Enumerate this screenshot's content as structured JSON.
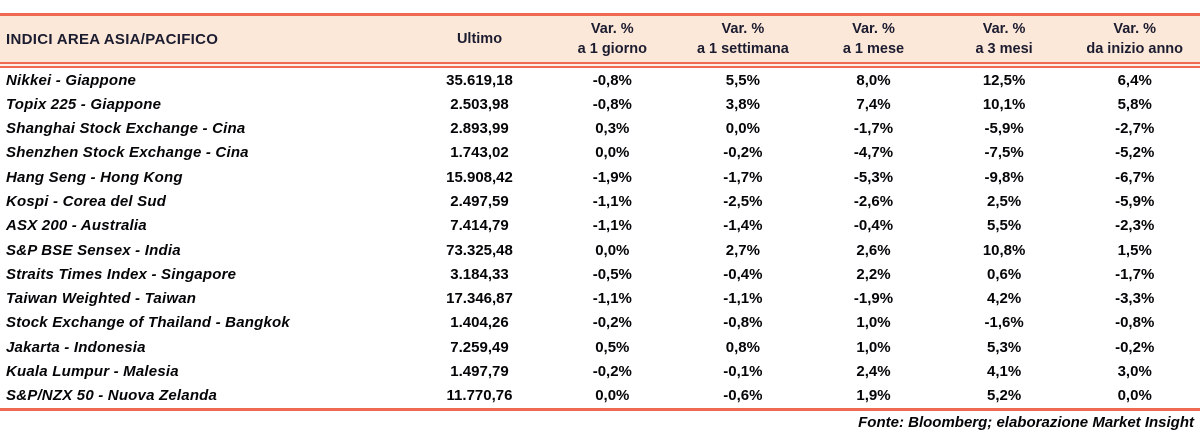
{
  "table": {
    "title": "INDICI AREA ASIA/PACIFICO",
    "col_ultimo": "Ultimo",
    "var_label": "Var. %",
    "var_periods": [
      "a 1 giorno",
      "a 1 settimana",
      "a 1 mese",
      "a 3 mesi",
      "da inizio anno"
    ],
    "rows": [
      {
        "name": "Nikkei - Giappone",
        "ultimo": "35.619,18",
        "d1": "-0,8%",
        "w1": "5,5%",
        "m1": "8,0%",
        "m3": "12,5%",
        "ytd": "6,4%"
      },
      {
        "name": "Topix 225 - Giappone",
        "ultimo": "2.503,98",
        "d1": "-0,8%",
        "w1": "3,8%",
        "m1": "7,4%",
        "m3": "10,1%",
        "ytd": "5,8%"
      },
      {
        "name": "Shanghai Stock Exchange - Cina",
        "ultimo": "2.893,99",
        "d1": "0,3%",
        "w1": "0,0%",
        "m1": "-1,7%",
        "m3": "-5,9%",
        "ytd": "-2,7%"
      },
      {
        "name": "Shenzhen Stock Exchange - Cina",
        "ultimo": "1.743,02",
        "d1": "0,0%",
        "w1": "-0,2%",
        "m1": "-4,7%",
        "m3": "-7,5%",
        "ytd": "-5,2%"
      },
      {
        "name": "Hang Seng - Hong Kong",
        "ultimo": "15.908,42",
        "d1": "-1,9%",
        "w1": "-1,7%",
        "m1": "-5,3%",
        "m3": "-9,8%",
        "ytd": "-6,7%"
      },
      {
        "name": "Kospi - Corea del Sud",
        "ultimo": "2.497,59",
        "d1": "-1,1%",
        "w1": "-2,5%",
        "m1": "-2,6%",
        "m3": "2,5%",
        "ytd": "-5,9%"
      },
      {
        "name": "ASX 200 - Australia",
        "ultimo": "7.414,79",
        "d1": "-1,1%",
        "w1": "-1,4%",
        "m1": "-0,4%",
        "m3": "5,5%",
        "ytd": "-2,3%"
      },
      {
        "name": "S&P BSE Sensex - India",
        "ultimo": "73.325,48",
        "d1": "0,0%",
        "w1": "2,7%",
        "m1": "2,6%",
        "m3": "10,8%",
        "ytd": "1,5%"
      },
      {
        "name": "Straits Times Index - Singapore",
        "ultimo": "3.184,33",
        "d1": "-0,5%",
        "w1": "-0,4%",
        "m1": "2,2%",
        "m3": "0,6%",
        "ytd": "-1,7%"
      },
      {
        "name": "Taiwan Weighted - Taiwan",
        "ultimo": "17.346,87",
        "d1": "-1,1%",
        "w1": "-1,1%",
        "m1": "-1,9%",
        "m3": "4,2%",
        "ytd": "-3,3%"
      },
      {
        "name": "Stock Exchange of Thailand - Bangkok",
        "ultimo": "1.404,26",
        "d1": "-0,2%",
        "w1": "-0,8%",
        "m1": "1,0%",
        "m3": "-1,6%",
        "ytd": "-0,8%"
      },
      {
        "name": "Jakarta - Indonesia",
        "ultimo": "7.259,49",
        "d1": "0,5%",
        "w1": "0,8%",
        "m1": "1,0%",
        "m3": "5,3%",
        "ytd": "-0,2%"
      },
      {
        "name": "Kuala Lumpur - Malesia",
        "ultimo": "1.497,79",
        "d1": "-0,2%",
        "w1": "-0,1%",
        "m1": "2,4%",
        "m3": "4,1%",
        "ytd": "3,0%"
      },
      {
        "name": "S&P/NZX 50 - Nuova Zelanda",
        "ultimo": "11.770,76",
        "d1": "0,0%",
        "w1": "-0,6%",
        "m1": "1,9%",
        "m3": "5,2%",
        "ytd": "0,0%"
      }
    ]
  },
  "footer": {
    "source": "Fonte: Bloomberg; elaborazione Market Insight"
  },
  "colors": {
    "accent": "#ee6a50",
    "header_bg": "#fce8d9",
    "header_text": "#1c1c30"
  }
}
